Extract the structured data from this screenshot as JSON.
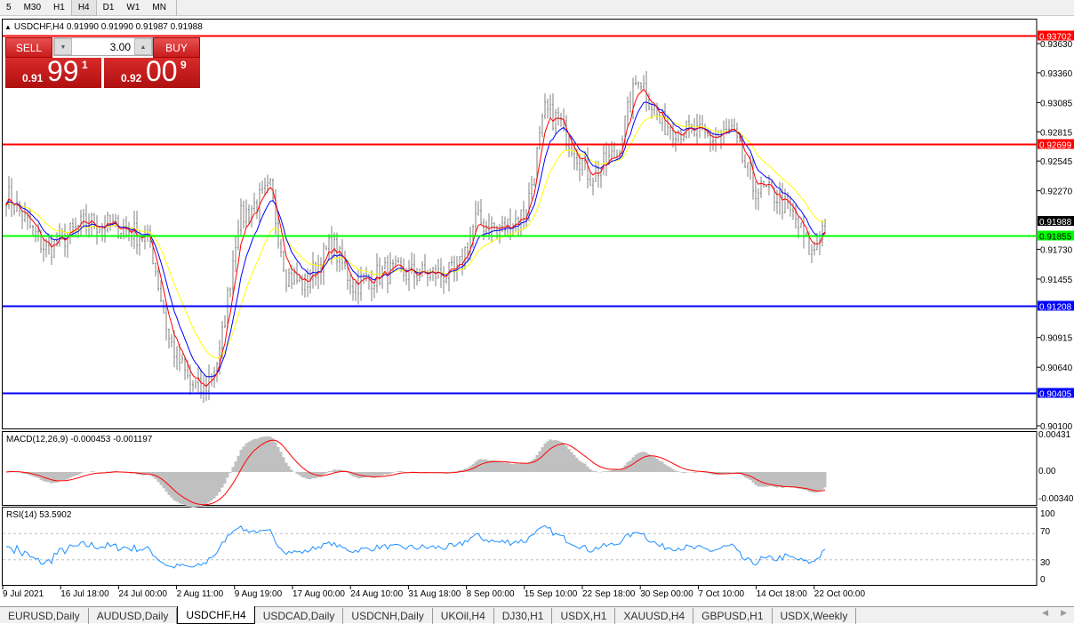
{
  "timeframes": [
    {
      "label": "5"
    },
    {
      "label": "M30"
    },
    {
      "label": "H1"
    },
    {
      "label": "H4",
      "active": true
    },
    {
      "label": "D1"
    },
    {
      "label": "W1"
    },
    {
      "label": "MN"
    }
  ],
  "chart": {
    "symbol": "USDCHF,H4",
    "ohlc": "0.91990 0.91990 0.91987 0.91988",
    "price_axis": [
      "0.93630",
      "0.93360",
      "0.93085",
      "0.92815",
      "0.92545",
      "0.92270",
      "0.91730",
      "0.91455",
      "0.90915",
      "0.90640",
      "0.90100"
    ],
    "price_ticks": [
      0.9363,
      0.9336,
      0.93085,
      0.92815,
      0.92545,
      0.9227,
      0.9173,
      0.91455,
      0.90915,
      0.9064,
      0.901
    ],
    "current_price": "0.91988",
    "hlines": [
      {
        "label": "0.93702",
        "value": 0.93702,
        "color": "#ff0000"
      },
      {
        "label": "0.92699",
        "value": 0.92699,
        "color": "#ff0000"
      },
      {
        "label": "0.91855",
        "value": 0.91855,
        "color": "#00ff00"
      },
      {
        "label": "0.91208",
        "value": 0.91208,
        "color": "#0000ff"
      },
      {
        "label": "0.90405",
        "value": 0.90405,
        "color": "#0000ff"
      }
    ],
    "time_axis": [
      "9 Jul 2021",
      "16 Jul 18:00",
      "24 Jul 00:00",
      "2 Aug 11:00",
      "9 Aug 19:00",
      "17 Aug 00:00",
      "24 Aug 10:00",
      "31 Aug 18:00",
      "8 Sep 00:00",
      "15 Sep 10:00",
      "22 Sep 18:00",
      "30 Sep 00:00",
      "7 Oct 10:00",
      "14 Oct 18:00",
      "22 Oct 00:00"
    ],
    "price_path": [
      [
        0,
        0.9225
      ],
      [
        15,
        0.9172
      ],
      [
        30,
        0.9198
      ],
      [
        45,
        0.9192
      ],
      [
        54,
        0.918
      ],
      [
        61,
        0.909
      ],
      [
        69,
        0.9048
      ],
      [
        74,
        0.9042
      ],
      [
        80,
        0.9075
      ],
      [
        87,
        0.92
      ],
      [
        99,
        0.9228
      ],
      [
        105,
        0.915
      ],
      [
        112,
        0.914
      ],
      [
        122,
        0.9178
      ],
      [
        130,
        0.914
      ],
      [
        142,
        0.9152
      ],
      [
        155,
        0.915
      ],
      [
        169,
        0.915
      ],
      [
        176,
        0.92
      ],
      [
        185,
        0.919
      ],
      [
        195,
        0.9208
      ],
      [
        202,
        0.93
      ],
      [
        207,
        0.9292
      ],
      [
        219,
        0.924
      ],
      [
        229,
        0.9262
      ],
      [
        237,
        0.9335
      ],
      [
        245,
        0.929
      ],
      [
        255,
        0.9282
      ],
      [
        265,
        0.9275
      ],
      [
        272,
        0.9282
      ],
      [
        280,
        0.923
      ],
      [
        289,
        0.9222
      ],
      [
        296,
        0.92
      ],
      [
        302,
        0.9168
      ],
      [
        307,
        0.91988
      ]
    ]
  },
  "macd": {
    "label": "MACD(12,26,9) -0.000453 -0.001197",
    "axis": [
      "0.00431",
      "0.00",
      "-0.003405"
    ]
  },
  "rsi": {
    "label": "RSI(14) 53.5902",
    "axis": [
      "100",
      "70",
      "30",
      "0"
    ],
    "levels": [
      70,
      30
    ]
  },
  "colors": {
    "ma_fast": "#ff0000",
    "ma_mid": "#0000ff",
    "ma_slow": "#ffff00",
    "bars": "#808080",
    "rsi": "#1e90ff",
    "macd_hist": "#c0c0c0",
    "macd_signal": "#ff0000"
  },
  "trade": {
    "sell_label": "SELL",
    "buy_label": "BUY",
    "lot": "3.00",
    "sell_small": "0.91",
    "sell_big": "99",
    "sell_tiny": "1",
    "buy_small": "0.92",
    "buy_big": "00",
    "buy_tiny": "9"
  },
  "tabs": [
    {
      "label": "EURUSD,Daily"
    },
    {
      "label": "AUDUSD,Daily"
    },
    {
      "label": "USDCHF,H4",
      "active": true
    },
    {
      "label": "USDCAD,Daily"
    },
    {
      "label": "USDCNH,Daily"
    },
    {
      "label": "UKOil,H4"
    },
    {
      "label": "DJ30,H1"
    },
    {
      "label": "USDX,H1"
    },
    {
      "label": "XAUUSD,H4"
    },
    {
      "label": "GBPUSD,H1"
    },
    {
      "label": "USDX,Weekly"
    }
  ]
}
